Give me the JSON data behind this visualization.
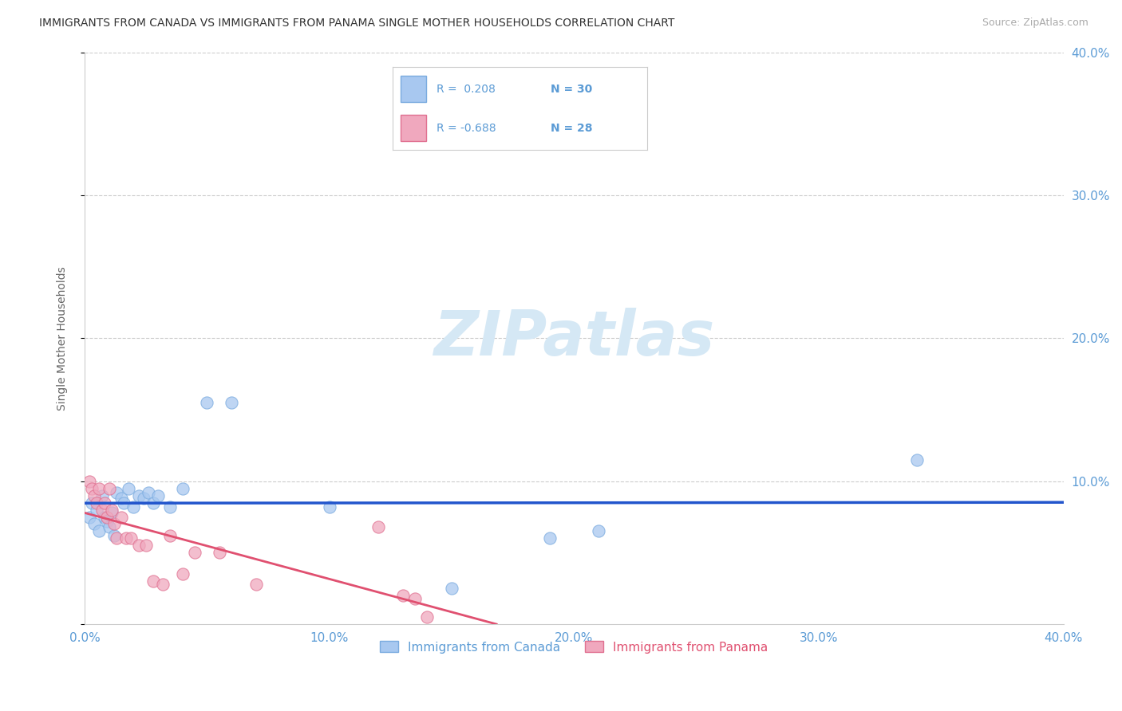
{
  "title": "IMMIGRANTS FROM CANADA VS IMMIGRANTS FROM PANAMA SINGLE MOTHER HOUSEHOLDS CORRELATION CHART",
  "source": "Source: ZipAtlas.com",
  "ylabel": "Single Mother Households",
  "xlim": [
    0.0,
    0.4
  ],
  "ylim": [
    0.0,
    0.4
  ],
  "ytick_vals": [
    0.0,
    0.1,
    0.2,
    0.3,
    0.4
  ],
  "xtick_vals": [
    0.0,
    0.1,
    0.2,
    0.3,
    0.4
  ],
  "grid_color": "#cccccc",
  "title_color": "#333333",
  "title_fontsize": 10.5,
  "axis_tick_color": "#5b9bd5",
  "watermark_text": "ZIPatlas",
  "watermark_color": "#d5e8f5",
  "legend_R_canada": " 0.208",
  "legend_N_canada": "30",
  "legend_R_panama": "-0.688",
  "legend_N_panama": "28",
  "canada_color": "#a8c8f0",
  "panama_color": "#f0a8be",
  "canada_edge_color": "#7aabdf",
  "panama_edge_color": "#e07090",
  "canada_line_color": "#2255cc",
  "panama_line_color": "#e05070",
  "legend_box_color": "#5b9bd5",
  "legend_N_color": "#e05070",
  "canada_points_x": [
    0.002,
    0.003,
    0.004,
    0.005,
    0.006,
    0.007,
    0.008,
    0.009,
    0.01,
    0.011,
    0.012,
    0.013,
    0.015,
    0.016,
    0.018,
    0.02,
    0.022,
    0.024,
    0.026,
    0.028,
    0.03,
    0.035,
    0.04,
    0.05,
    0.06,
    0.1,
    0.15,
    0.19,
    0.21,
    0.34
  ],
  "canada_points_y": [
    0.075,
    0.085,
    0.07,
    0.08,
    0.065,
    0.09,
    0.075,
    0.072,
    0.068,
    0.078,
    0.062,
    0.092,
    0.088,
    0.085,
    0.095,
    0.082,
    0.09,
    0.088,
    0.092,
    0.085,
    0.09,
    0.082,
    0.095,
    0.155,
    0.155,
    0.082,
    0.025,
    0.06,
    0.065,
    0.115
  ],
  "panama_points_x": [
    0.002,
    0.003,
    0.004,
    0.005,
    0.006,
    0.007,
    0.008,
    0.009,
    0.01,
    0.011,
    0.012,
    0.013,
    0.015,
    0.017,
    0.019,
    0.022,
    0.025,
    0.028,
    0.032,
    0.035,
    0.04,
    0.045,
    0.055,
    0.07,
    0.12,
    0.13,
    0.135,
    0.14
  ],
  "panama_points_y": [
    0.1,
    0.095,
    0.09,
    0.085,
    0.095,
    0.08,
    0.085,
    0.075,
    0.095,
    0.08,
    0.07,
    0.06,
    0.075,
    0.06,
    0.06,
    0.055,
    0.055,
    0.03,
    0.028,
    0.062,
    0.035,
    0.05,
    0.05,
    0.028,
    0.068,
    0.02,
    0.018,
    0.005
  ],
  "marker_size": 120
}
